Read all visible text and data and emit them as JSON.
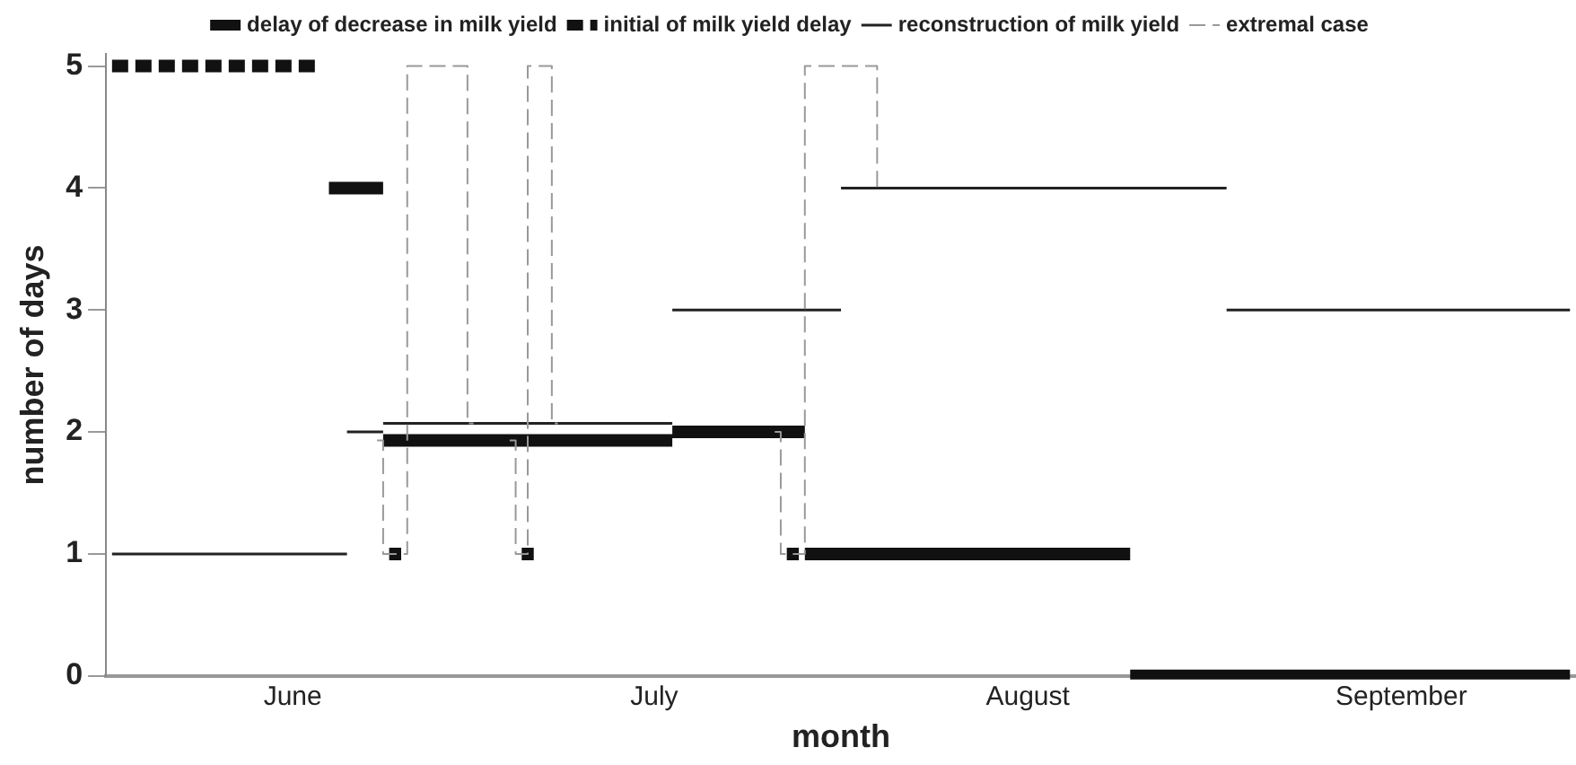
{
  "chart_data": {
    "type": "step",
    "xlabel": "month",
    "ylabel": "number of days",
    "legend": "top",
    "grid": false,
    "ylim": [
      0,
      5.1
    ],
    "yticks": [
      0,
      1,
      2,
      3,
      4,
      5
    ],
    "categories": [
      null,
      null,
      null,
      null,
      null,
      null,
      null,
      null,
      null,
      null,
      null,
      null,
      null,
      null,
      null,
      "June",
      null,
      null,
      null,
      null,
      null,
      null,
      null,
      null,
      null,
      null,
      null,
      null,
      null,
      null,
      null,
      null,
      null,
      null,
      null,
      null,
      null,
      null,
      null,
      null,
      null,
      null,
      null,
      null,
      null,
      "July",
      null,
      null,
      null,
      null,
      null,
      null,
      null,
      null,
      null,
      null,
      null,
      null,
      null,
      null,
      null,
      null,
      null,
      null,
      null,
      null,
      null,
      null,
      null,
      null,
      null,
      null,
      null,
      null,
      null,
      null,
      "August",
      null,
      null,
      null,
      null,
      null,
      null,
      null,
      null,
      null,
      null,
      null,
      null,
      null,
      null,
      null,
      null,
      null,
      null,
      null,
      null,
      null,
      null,
      null,
      null,
      null,
      null,
      null,
      null,
      null,
      null,
      "September",
      null,
      null,
      null,
      null,
      null,
      null,
      null,
      null,
      null,
      null,
      null,
      null,
      null,
      null
    ],
    "series": [
      {
        "name": "delay of decrease in milk yield",
        "color": "#111111",
        "line_style": "solid",
        "values": [
          null,
          null,
          null,
          null,
          null,
          null,
          null,
          null,
          null,
          null,
          null,
          null,
          null,
          null,
          null,
          null,
          null,
          null,
          4,
          4,
          4,
          4,
          4,
          1.93,
          1.93,
          1.93,
          1.93,
          1.93,
          1.93,
          1.93,
          1.93,
          1.93,
          1.93,
          1.93,
          1.93,
          1.93,
          1.93,
          1.93,
          1.93,
          1.93,
          1.93,
          1.93,
          1.93,
          1.93,
          1.93,
          1.93,
          1.93,
          2,
          2,
          2,
          2,
          2,
          2,
          2,
          2,
          2,
          2,
          2,
          1,
          1,
          1,
          1,
          1,
          1,
          1,
          1,
          1,
          1,
          1,
          1,
          1,
          1,
          1,
          1,
          1,
          1,
          1,
          1,
          1,
          1,
          1,
          1,
          1,
          1,
          1,
          0,
          0,
          0,
          0,
          0,
          0,
          0,
          0,
          0,
          0,
          0,
          0,
          0,
          0,
          0,
          0,
          0,
          0,
          0,
          0,
          0,
          0,
          0,
          0,
          0,
          0,
          0,
          0,
          0,
          0,
          0,
          0,
          0,
          0,
          0,
          0,
          0
        ]
      },
      {
        "name": "initial of milk yield delay",
        "color": "#111111",
        "line_style": "dashed",
        "values": [
          5,
          5,
          5,
          5,
          5,
          5,
          5,
          5,
          5,
          5,
          5,
          5,
          5,
          5,
          5,
          5,
          5,
          5,
          null,
          null,
          null,
          null,
          null,
          1,
          1,
          null,
          null,
          null,
          null,
          null,
          null,
          null,
          null,
          null,
          1,
          1,
          null,
          null,
          null,
          null,
          null,
          null,
          null,
          null,
          null,
          null,
          null,
          null,
          null,
          null,
          null,
          null,
          null,
          null,
          null,
          null,
          1,
          1,
          null,
          null,
          null,
          null,
          null,
          null,
          null,
          null,
          null,
          null,
          null,
          null,
          null,
          null,
          null,
          null,
          null,
          null,
          null,
          null,
          null,
          null,
          null,
          null,
          null,
          null,
          null,
          null,
          null,
          null,
          null,
          null,
          null,
          null,
          null,
          null,
          null,
          null,
          null,
          null,
          null,
          null,
          null,
          null,
          null,
          null,
          null,
          null,
          null,
          null,
          null,
          null,
          null,
          null,
          null,
          null,
          null,
          null,
          null,
          null,
          null,
          null,
          null,
          null
        ]
      },
      {
        "name": "reconstruction of milk yield",
        "color": "#222222",
        "line_style": "solid",
        "values": [
          1,
          1,
          1,
          1,
          1,
          1,
          1,
          1,
          1,
          1,
          1,
          1,
          1,
          1,
          1,
          1,
          1,
          1,
          1,
          1,
          2,
          2,
          2,
          2.07,
          2.07,
          2.07,
          2.07,
          2.07,
          2.07,
          2.07,
          2.07,
          2.07,
          2.07,
          2.07,
          2.07,
          2.07,
          2.07,
          2.07,
          2.07,
          2.07,
          2.07,
          2.07,
          2.07,
          2.07,
          2.07,
          2.07,
          2.07,
          3,
          3,
          3,
          3,
          3,
          3,
          3,
          3,
          3,
          3,
          3,
          3,
          3,
          3,
          4,
          4,
          4,
          4,
          4,
          4,
          4,
          4,
          4,
          4,
          4,
          4,
          4,
          4,
          4,
          4,
          4,
          4,
          4,
          4,
          4,
          4,
          4,
          4,
          4,
          4,
          4,
          4,
          4,
          4,
          4,
          4,
          3,
          3,
          3,
          3,
          3,
          3,
          3,
          3,
          3,
          3,
          3,
          3,
          3,
          3,
          3,
          3,
          3,
          3,
          3,
          3,
          3,
          3,
          3,
          3,
          3,
          3,
          3,
          3,
          3
        ]
      },
      {
        "name": "extremal case",
        "color": "#999999",
        "line_style": "dashed",
        "values": [
          null,
          null,
          null,
          null,
          null,
          null,
          null,
          null,
          null,
          null,
          null,
          null,
          null,
          null,
          null,
          null,
          null,
          null,
          null,
          null,
          null,
          null,
          1.93,
          1,
          1,
          5,
          5,
          5,
          5,
          5,
          2.07,
          null,
          null,
          1.93,
          1,
          5,
          5,
          2.07,
          null,
          null,
          null,
          null,
          null,
          null,
          null,
          null,
          null,
          null,
          null,
          null,
          null,
          null,
          null,
          null,
          null,
          2,
          1,
          1,
          5,
          5,
          5,
          5,
          5,
          5,
          4,
          null,
          null,
          null,
          null,
          null,
          null,
          null,
          null,
          null,
          null,
          null,
          null,
          null,
          null,
          null,
          null,
          null,
          null,
          null,
          null,
          null,
          null,
          null,
          null,
          null,
          null,
          null,
          null,
          null,
          null,
          null,
          null,
          null,
          null,
          null,
          null,
          null,
          null,
          null,
          null,
          null,
          null,
          null,
          null,
          null,
          null,
          null,
          null,
          null,
          null,
          null,
          null,
          null,
          null,
          null,
          null,
          null
        ]
      }
    ]
  }
}
